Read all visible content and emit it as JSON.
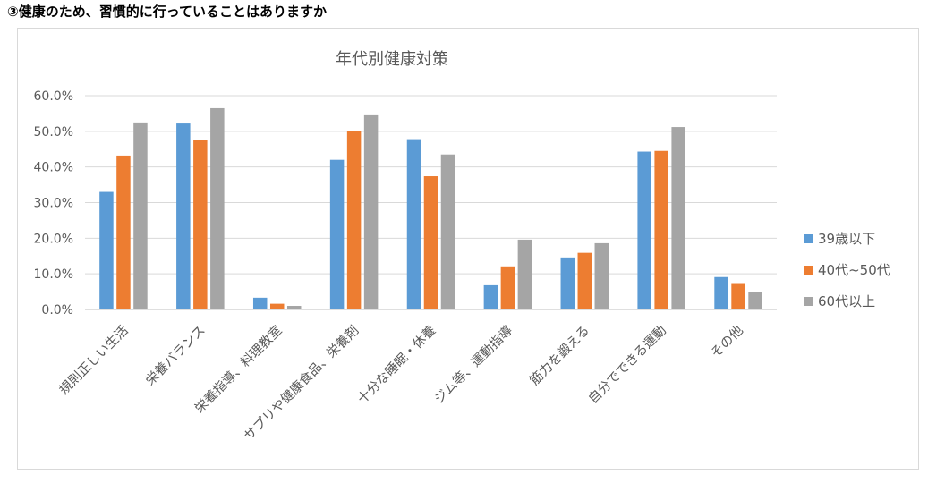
{
  "heading": "③健康のため、習慣的に行っていることはありますか",
  "chart_data": {
    "type": "bar",
    "title": "年代別健康対策",
    "xlabel": "",
    "ylabel": "",
    "ylim": [
      0,
      60
    ],
    "yticks": [
      "0.0%",
      "10.0%",
      "20.0%",
      "30.0%",
      "40.0%",
      "50.0%",
      "60.0%"
    ],
    "grid": true,
    "legend_position": "right",
    "categories": [
      "規則正しい生活",
      "栄養バランス",
      "栄養指導、料理教室",
      "サプリや健康食品、栄養剤",
      "十分な睡眠・休養",
      "ジム等、運動指導",
      "筋力を鍛える",
      "自分でできる運動",
      "その他"
    ],
    "series": [
      {
        "name": "39歳以下",
        "color": "#5b9bd5",
        "values": [
          33.0,
          52.2,
          3.3,
          42.0,
          47.8,
          6.8,
          14.6,
          44.3,
          9.1
        ]
      },
      {
        "name": "40代~50代",
        "color": "#ed7d31",
        "values": [
          43.2,
          47.5,
          1.6,
          50.2,
          37.4,
          12.1,
          15.9,
          44.5,
          7.4
        ]
      },
      {
        "name": "60代以上",
        "color": "#a5a5a5",
        "values": [
          52.5,
          56.5,
          1.0,
          54.5,
          43.5,
          19.6,
          18.6,
          51.2,
          4.9
        ]
      }
    ]
  }
}
